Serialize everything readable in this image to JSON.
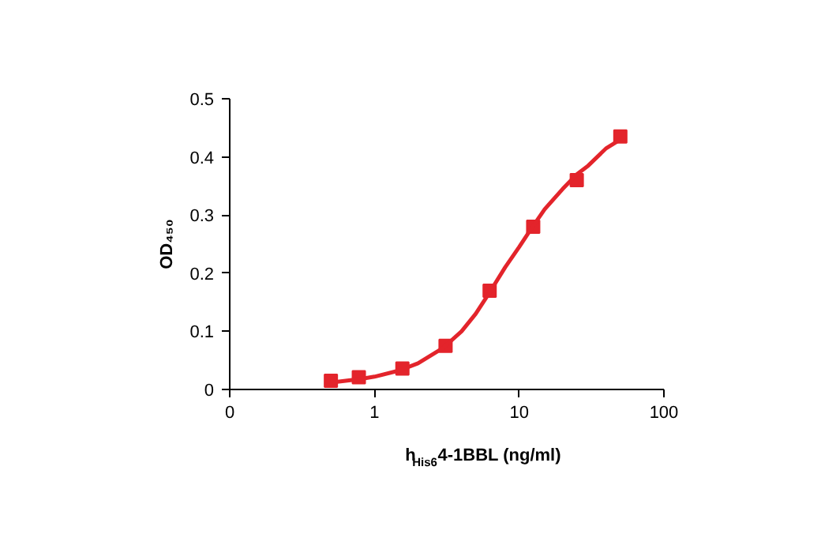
{
  "chart_data": {
    "type": "scatter",
    "xlabel": "h$_{His6}$4-1BBL (ng/ml)",
    "ylabel": "OD₄₅₀",
    "log": "x",
    "xlim": [
      0.1,
      100
    ],
    "xticks": [
      {
        "value": 0.1,
        "label": "0"
      },
      1,
      10,
      100
    ],
    "ylim": [
      0,
      0.5
    ],
    "yticks": [
      0,
      0.1,
      0.2,
      0.3,
      0.4,
      0.5
    ],
    "series": [
      {
        "marker": "square",
        "color": "#e3242b",
        "x": [
          0.5,
          0.78,
          1.56,
          3.1,
          6.25,
          12.5,
          25,
          50
        ],
        "values": [
          0.015,
          0.021,
          0.036,
          0.075,
          0.17,
          0.28,
          0.36,
          0.435
        ]
      },
      {
        "type": "line",
        "marker": "none",
        "color": "#e3242b",
        "x": [
          0.5,
          0.8,
          1,
          1.5,
          2,
          3,
          4,
          5,
          6,
          8,
          10,
          12,
          15,
          20,
          25,
          30,
          40,
          50
        ],
        "values": [
          0.012,
          0.018,
          0.022,
          0.033,
          0.045,
          0.072,
          0.1,
          0.13,
          0.16,
          0.21,
          0.245,
          0.275,
          0.31,
          0.345,
          0.37,
          0.385,
          0.415,
          0.43
        ]
      }
    ]
  }
}
